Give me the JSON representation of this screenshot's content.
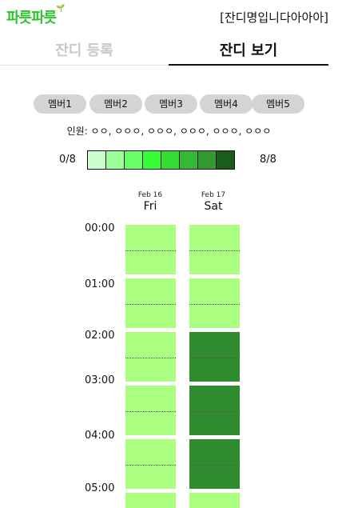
{
  "header": {
    "logo_text": "파릇파릇",
    "room_title": "[잔디명입니다아아아]"
  },
  "tabs": [
    {
      "label": "잔디 등록",
      "active": false
    },
    {
      "label": "잔디 보기",
      "active": true
    }
  ],
  "members": [
    "멤버1",
    "멤버2",
    "멤버3",
    "멤버4",
    "멤버5"
  ],
  "attendees_text": "인원: ㅇㅇ, ㅇㅇㅇ, ㅇㅇㅇ, ㅇㅇㅇ, ㅇㅇㅇ, ㅇㅇㅇ",
  "legend": {
    "min_label": "0/8",
    "max_label": "8/8",
    "colors": [
      "#ccffcc",
      "#99ff99",
      "#66ff66",
      "#33ff33",
      "#33dd33",
      "#33bb33",
      "#339933",
      "#1a5c1a"
    ]
  },
  "days": [
    {
      "date": "Feb 16",
      "name": "Fri"
    },
    {
      "date": "Feb 17",
      "name": "Sat"
    }
  ],
  "times": [
    "00:00",
    "01:00",
    "02:00",
    "03:00",
    "04:00",
    "05:00"
  ],
  "slot_levels": {
    "note": "",
    "fri": [
      1,
      1,
      1,
      1,
      1,
      1,
      1,
      1,
      1,
      1,
      1
    ],
    "sat": [
      1,
      1,
      1,
      1,
      7,
      7,
      7,
      7,
      7,
      7,
      1
    ]
  },
  "colors": {
    "light_slot": "#aaff80",
    "dark_slot": "#2e8b2e",
    "logo": "#2cc32c"
  }
}
